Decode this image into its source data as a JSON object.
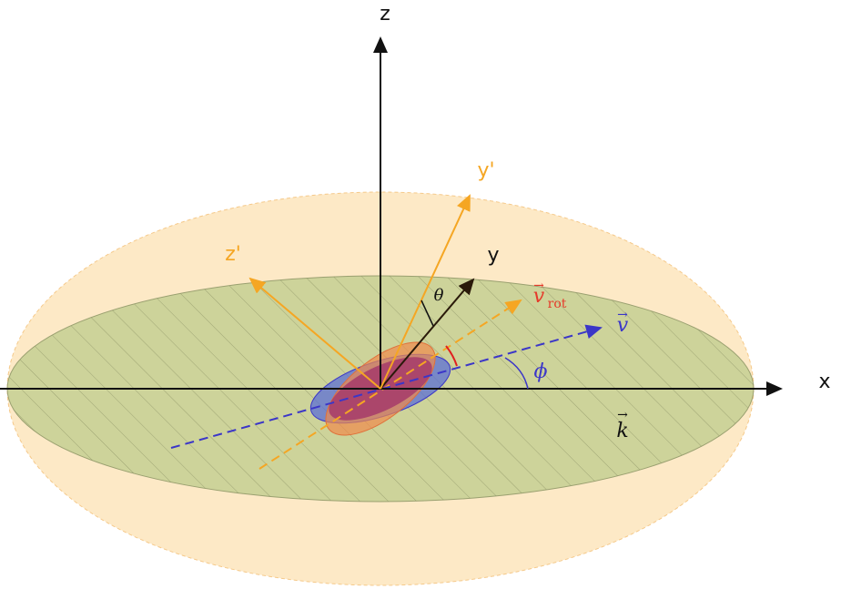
{
  "labels": {
    "x": "x",
    "y": "y",
    "z": "z",
    "y_prime": "y'",
    "z_prime": "z'",
    "theta": "θ",
    "phi": "ϕ",
    "v": "v",
    "v_rot": "v",
    "v_rot_sub": "rot",
    "k": "k",
    "vec_arrow": "→"
  },
  "colors": {
    "outer_ellipse": "#fde9c6",
    "outer_ellipse_edge": "#f5c98a",
    "inner_disk": "#cdd39a",
    "inner_disk_edge": "#9aa070",
    "hatch": "#8f9568",
    "axes": "#111111",
    "primed_axes": "#f5a623",
    "y_axis": "#2a1a0a",
    "v_vector": "#3b36c8",
    "v_rot_label": "#e53a2a",
    "blue_ellipse": "#5b6fd6",
    "orange_ellipse": "#f08a4b",
    "purple_overlap": "#a0306a",
    "red_arc": "#e02020"
  }
}
